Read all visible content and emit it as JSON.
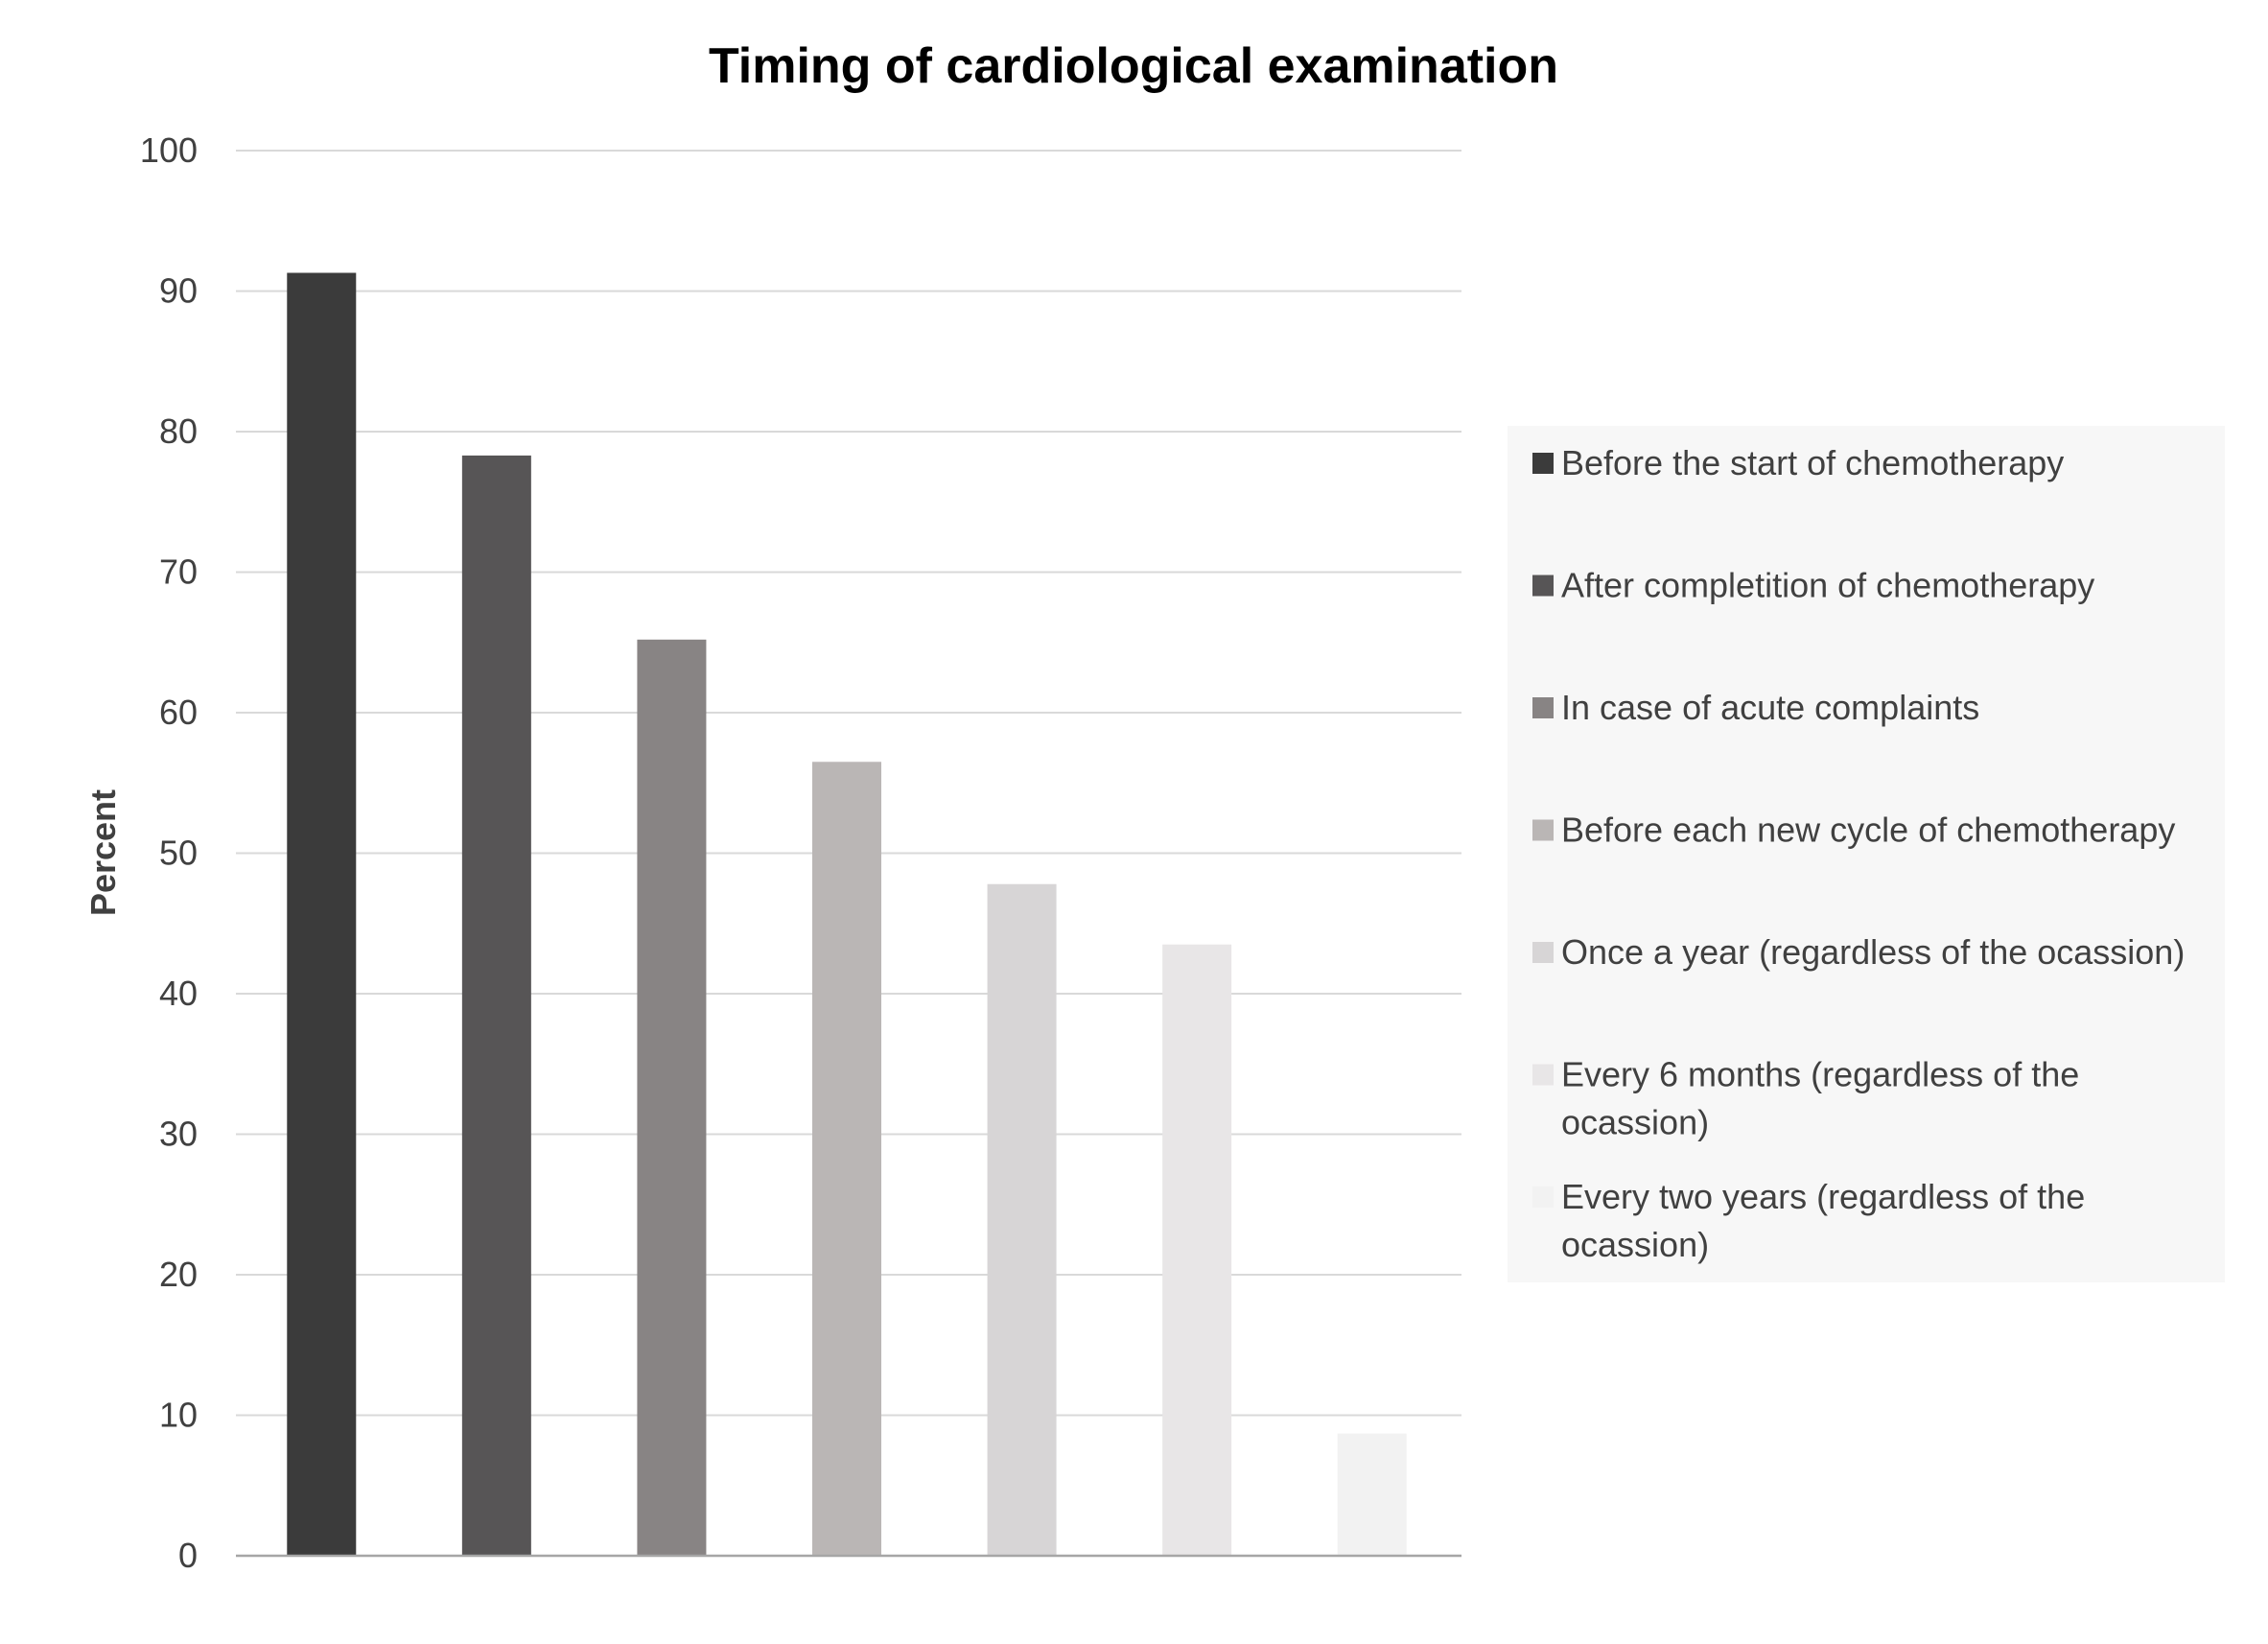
{
  "chart_data": {
    "type": "bar",
    "title": "Timing of cardiological examination",
    "xlabel": "",
    "ylabel": "Percent",
    "ylim": [
      0,
      100
    ],
    "yticks": [
      "0",
      "10",
      "20",
      "30",
      "40",
      "50",
      "60",
      "70",
      "80",
      "90",
      "100"
    ],
    "grid": true,
    "legend_position": "right",
    "categories": [
      "Before the start of chemotherapy",
      "After completition of chemotherapy",
      "In case of acute complaints",
      "Before each new cycle of chemotherapy",
      "Once a year (regardless of the ocassion)",
      "Every 6 months (regardless of the ocassion)",
      "Every two years (regardless of the ocassion)"
    ],
    "legend_lines": [
      [
        "Before the start of chemotherapy"
      ],
      [
        "After completition of chemotherapy"
      ],
      [
        "In case of acute complaints"
      ],
      [
        "Before each new cycle of chemotherapy"
      ],
      [
        "Once a year (regardless of the ocassion)"
      ],
      [
        "Every 6 months (regardless of the",
        "ocassion)"
      ],
      [
        "Every two years (regardless of the",
        "ocassion)"
      ]
    ],
    "values": [
      91.3,
      78.3,
      65.2,
      56.5,
      47.8,
      43.5,
      8.7
    ],
    "colors": [
      "#3b3b3b",
      "#575556",
      "#888484",
      "#bab6b5",
      "#d7d5d6",
      "#e8e6e7",
      "#f2f2f2"
    ],
    "colors_meta": {
      "gridline": "#d9d9d9",
      "axis": "#a6a6a6",
      "legend_background": "#f7f7f7"
    }
  }
}
